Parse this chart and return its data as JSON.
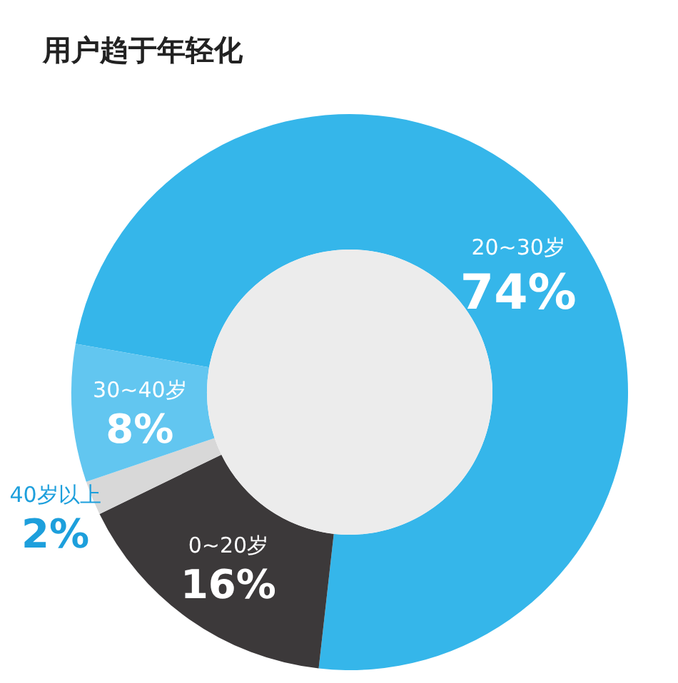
{
  "chart_data": {
    "type": "donut",
    "title": "用户趋于年轻化",
    "categories": [
      "20~30岁",
      "0~20岁",
      "40岁以上",
      "30~40岁"
    ],
    "values": [
      74,
      16,
      2,
      8
    ],
    "value_labels": [
      "74%",
      "16%",
      "2%",
      "8%"
    ],
    "colors": [
      "#35b6ea",
      "#3c393a",
      "#d8d8d8",
      "#62c6f0"
    ]
  }
}
